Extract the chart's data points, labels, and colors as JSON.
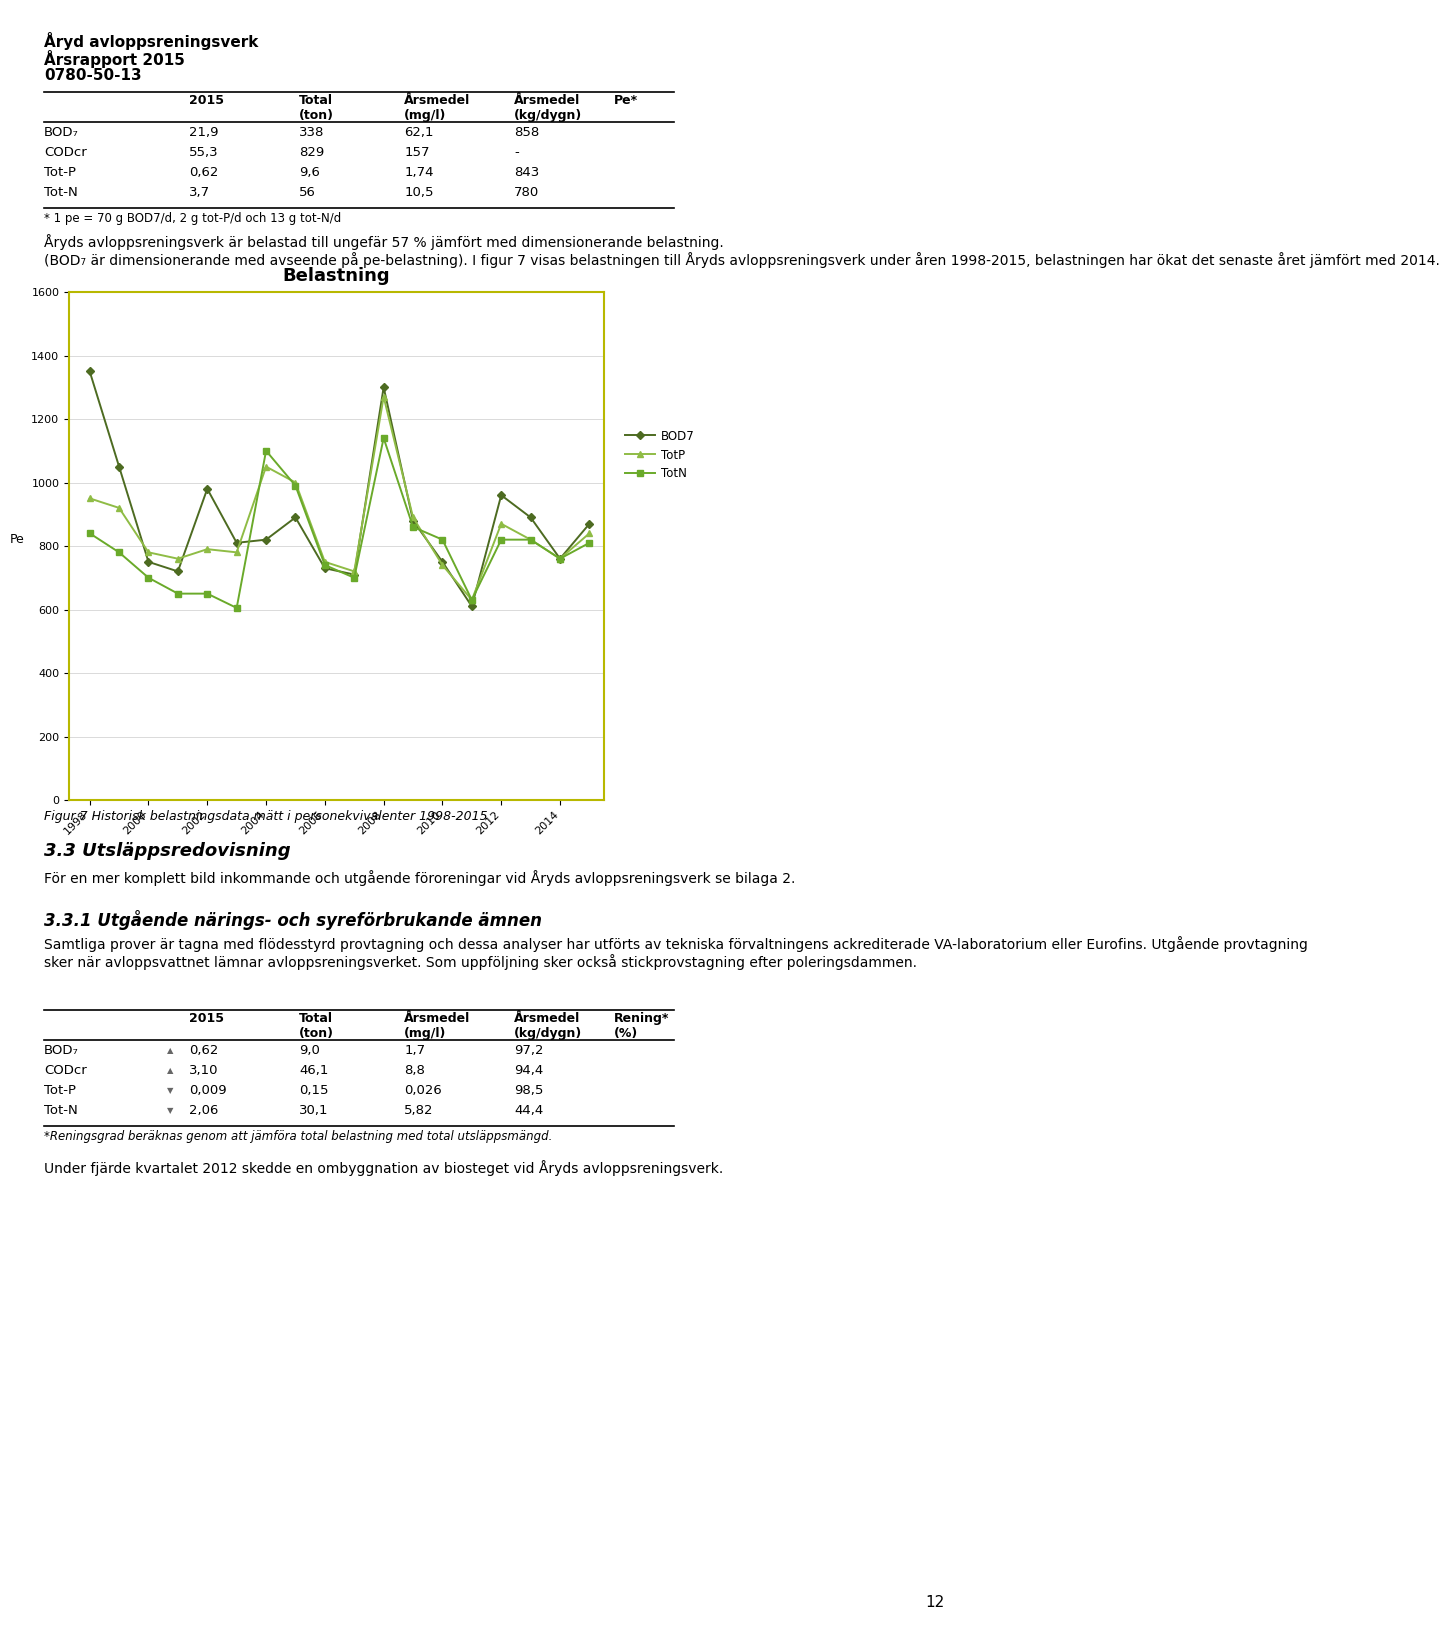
{
  "title": "Belastning",
  "ylabel": "Pe",
  "chart_border_color": "#c8c800",
  "years": [
    1998,
    1999,
    2000,
    2001,
    2002,
    2003,
    2004,
    2005,
    2006,
    2007,
    2008,
    2009,
    2010,
    2011,
    2012,
    2013,
    2014,
    2015
  ],
  "BOD7": [
    1350,
    1050,
    750,
    720,
    980,
    810,
    820,
    890,
    730,
    710,
    1300,
    880,
    750,
    610,
    960,
    890,
    760,
    870
  ],
  "TotP": [
    950,
    920,
    780,
    760,
    790,
    780,
    1050,
    1000,
    750,
    720,
    1270,
    890,
    740,
    630,
    870,
    820,
    760,
    840
  ],
  "TotN": [
    840,
    780,
    700,
    650,
    650,
    605,
    1100,
    990,
    740,
    700,
    1140,
    860,
    820,
    630,
    820,
    820,
    760,
    810
  ],
  "BOD7_color": "#4d6b21",
  "TotP_color": "#8fbc45",
  "TotN_color": "#6aaa2a",
  "ylim": [
    0,
    1600
  ],
  "yticks": [
    0,
    200,
    400,
    600,
    800,
    1000,
    1200,
    1400,
    1600
  ],
  "xtick_years": [
    1998,
    2000,
    2002,
    2004,
    2006,
    2008,
    2010,
    2012,
    2014
  ],
  "figcaption": "Figur 7 Historisk belastningsdata mätt i personekvivalenter 1998-2015",
  "page_title": "Åryd avloppsreningsverk",
  "page_subtitle": "Årsrapport 2015",
  "page_subtitle2": "0780-50-13",
  "footnote1": "* 1 pe = 70 g BOD7/d, 2 g tot-P/d och 13 g tot-N/d",
  "text_block1": "Åryds avloppsreningsverk är belastad till ungefär 57 % jämfört med dimensionerande belastning.",
  "text_block2": "(BOD₇ är dimensionerande med avseende på pe-belastning). I figur 7 visas belastningen till Åryds avloppsreningsverk under åren 1998-2015, belastningen har ökat det senaste året jämfört med 2014.",
  "section_title": "3.3 Utsläppsredovisning",
  "section_text": "För en mer komplett bild inkommande och utgående föroreningar vid Åryds avloppsreningsverk se bilaga 2.",
  "subsection_title": "3.3.1 Utgående närings- och syreförbrukande ämnen",
  "subsection_text1": "Samtliga prover är tagna med flödesstyrd provtagning och dessa analyser har utförts av tekniska förvaltningens ackrediterade VA-laboratorium eller Eurofins. Utgående provtagning",
  "subsection_text2": "sker när avloppsvattnet lämnar avloppsreningsverket. Som uppföljning sker också stickprovstagning efter poleringsdammen.",
  "footnote2": "*Reningsgrad beräknas genom att jämföra total belastning med total utsläppsmängd.",
  "final_text": "Under fjärde kvartalet 2012 skedde en ombyggnation av biosteget vid Åryds avloppsreningsverk.",
  "page_number": "12"
}
